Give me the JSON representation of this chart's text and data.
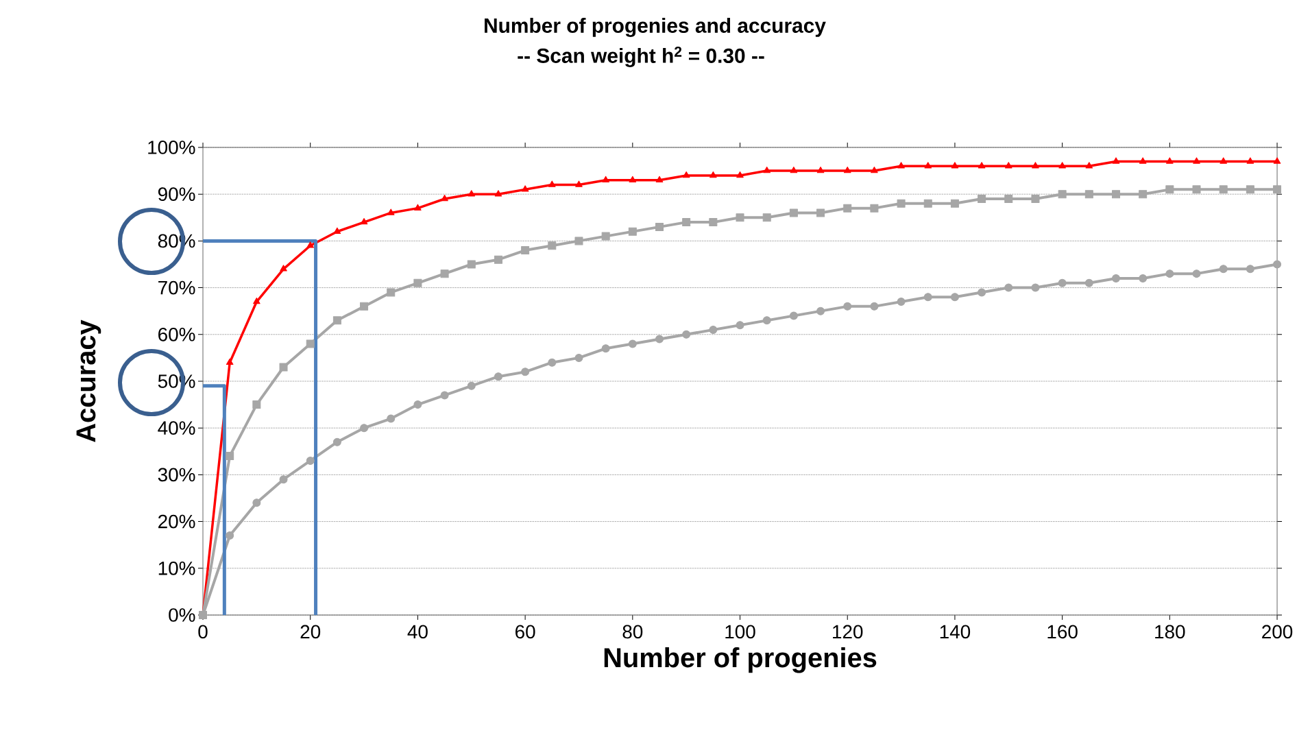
{
  "chart_data": {
    "type": "line",
    "title": "Number of progenies and accuracy",
    "subtitle": "-- Scan weight h$^{2}$ = 0.30 --",
    "xlabel": "Number of progenies",
    "ylabel": "Accuracy",
    "x": [
      0,
      5,
      10,
      15,
      20,
      25,
      30,
      35,
      40,
      45,
      50,
      55,
      60,
      65,
      70,
      75,
      80,
      85,
      90,
      95,
      100,
      105,
      110,
      115,
      120,
      125,
      130,
      135,
      140,
      145,
      150,
      155,
      160,
      165,
      170,
      175,
      180,
      185,
      190,
      195,
      200
    ],
    "series": [
      {
        "color": "#ff0000",
        "marker": "triangle",
        "values": [
          0,
          54,
          67,
          74,
          79,
          82,
          84,
          86,
          87,
          89,
          90,
          90,
          91,
          92,
          92,
          93,
          93,
          93,
          94,
          94,
          94,
          95,
          95,
          95,
          95,
          95,
          96,
          96,
          96,
          96,
          96,
          96,
          96,
          96,
          97,
          97,
          97,
          97,
          97,
          97,
          97
        ]
      },
      {
        "color": "#a6a6a6",
        "marker": "square",
        "values": [
          0,
          34,
          45,
          53,
          58,
          63,
          66,
          69,
          71,
          73,
          75,
          76,
          78,
          79,
          80,
          81,
          82,
          83,
          84,
          84,
          85,
          85,
          86,
          86,
          87,
          87,
          88,
          88,
          88,
          89,
          89,
          89,
          90,
          90,
          90,
          90,
          91,
          91,
          91,
          91,
          91
        ]
      },
      {
        "color": "#a6a6a6",
        "marker": "circle",
        "values": [
          0,
          17,
          24,
          29,
          33,
          37,
          40,
          42,
          45,
          47,
          49,
          51,
          52,
          54,
          55,
          57,
          58,
          59,
          60,
          61,
          62,
          63,
          64,
          65,
          66,
          66,
          67,
          68,
          68,
          69,
          70,
          70,
          71,
          71,
          72,
          72,
          73,
          73,
          74,
          74,
          75
        ]
      },
      {
        "color": "#4f81bd",
        "marker": "none",
        "x": [
          0,
          4,
          4
        ],
        "values": [
          49,
          49,
          0
        ]
      },
      {
        "color": "#4f81bd",
        "marker": "none",
        "x": [
          0,
          21,
          21
        ],
        "values": [
          80,
          80,
          0
        ]
      }
    ],
    "xlim": [
      0,
      200
    ],
    "xticks": [
      0,
      20,
      40,
      60,
      80,
      100,
      120,
      140,
      160,
      180,
      200
    ],
    "ylim": [
      0,
      100
    ],
    "yticks": [
      {
        "value": 0,
        "label": "0%"
      },
      {
        "value": 10,
        "label": "10%"
      },
      {
        "value": 20,
        "label": "20%"
      },
      {
        "value": 30,
        "label": "30%"
      },
      {
        "value": 40,
        "label": "40%"
      },
      {
        "value": 50,
        "label": "50%"
      },
      {
        "value": 60,
        "label": "60%"
      },
      {
        "value": 70,
        "label": "70%"
      },
      {
        "value": 80,
        "label": "80%"
      },
      {
        "value": 90,
        "label": "90%"
      },
      {
        "value": 100,
        "label": "100%"
      }
    ],
    "grid": "y"
  }
}
